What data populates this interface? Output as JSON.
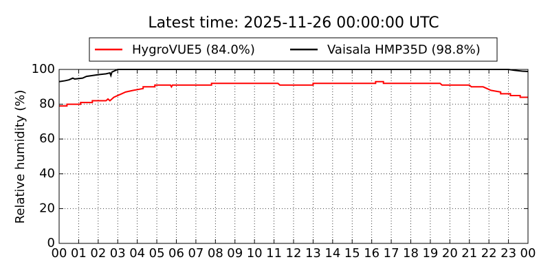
{
  "chart_data": {
    "type": "line",
    "title": "Latest time: 2025-11-26 00:00:00 UTC",
    "y_label": "Relative humidity (%)",
    "legend": "upper center",
    "grid": true,
    "xlim": [
      0,
      24
    ],
    "ylim": [
      0,
      100
    ],
    "yticks": [
      0,
      20,
      40,
      60,
      80,
      100
    ],
    "xticks": [
      {
        "value": 0,
        "label": "00"
      },
      {
        "value": 1,
        "label": "01"
      },
      {
        "value": 2,
        "label": "02"
      },
      {
        "value": 3,
        "label": "03"
      },
      {
        "value": 4,
        "label": "04"
      },
      {
        "value": 5,
        "label": "05"
      },
      {
        "value": 6,
        "label": "06"
      },
      {
        "value": 7,
        "label": "07"
      },
      {
        "value": 8,
        "label": "08"
      },
      {
        "value": 9,
        "label": "09"
      },
      {
        "value": 10,
        "label": "10"
      },
      {
        "value": 11,
        "label": "11"
      },
      {
        "value": 12,
        "label": "12"
      },
      {
        "value": 13,
        "label": "13"
      },
      {
        "value": 14,
        "label": "14"
      },
      {
        "value": 15,
        "label": "15"
      },
      {
        "value": 16,
        "label": "16"
      },
      {
        "value": 17,
        "label": "17"
      },
      {
        "value": 18,
        "label": "18"
      },
      {
        "value": 19,
        "label": "19"
      },
      {
        "value": 20,
        "label": "20"
      },
      {
        "value": 21,
        "label": "21"
      },
      {
        "value": 22,
        "label": "22"
      },
      {
        "value": 23,
        "label": "23"
      },
      {
        "value": 24,
        "label": "00"
      }
    ],
    "series": [
      {
        "name": "HygroVUE5 (84.0%)",
        "color": "#ff0000",
        "x": [
          0,
          0.4,
          0.4,
          1.1,
          1.1,
          1.7,
          1.7,
          2.4,
          2.5,
          2.6,
          2.7,
          2.8,
          3.0,
          3.2,
          3.4,
          3.8,
          4.3,
          4.3,
          4.9,
          4.9,
          5.7,
          5.75,
          5.8,
          7.8,
          7.8,
          11.2,
          11.3,
          13.0,
          13.0,
          16.2,
          16.2,
          16.6,
          16.6,
          19.5,
          19.6,
          21.0,
          21.1,
          21.7,
          21.9,
          22.1,
          22.6,
          22.6,
          23.1,
          23.1,
          23.6,
          23.6,
          24
        ],
        "values": [
          79,
          79,
          80,
          80,
          81,
          81,
          82,
          82,
          83,
          82,
          83,
          84,
          85,
          86,
          87,
          88,
          89,
          90,
          90,
          91,
          91,
          90,
          91,
          91,
          92,
          92,
          91,
          91,
          92,
          92,
          93,
          93,
          92,
          92,
          91,
          91,
          90,
          90,
          89,
          88,
          87,
          86,
          86,
          85,
          85,
          84,
          84
        ]
      },
      {
        "name": "Vaisala HMP35D (98.8%)",
        "color": "#000000",
        "x": [
          0,
          0.3,
          0.5,
          0.7,
          0.8,
          1.2,
          1.4,
          1.7,
          2.0,
          2.4,
          2.6,
          2.65,
          2.7,
          2.8,
          3.0,
          23.0,
          23.3,
          23.7,
          24
        ],
        "values": [
          93,
          93.5,
          94,
          95,
          94.5,
          95,
          96,
          96.5,
          97,
          97.5,
          98,
          96.5,
          98.5,
          99,
          100,
          100,
          99.5,
          99,
          98.8
        ]
      }
    ]
  }
}
